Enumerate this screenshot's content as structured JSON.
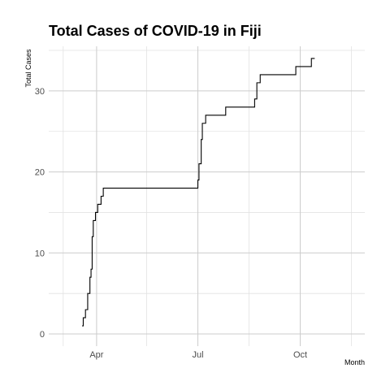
{
  "chart_data": {
    "type": "line",
    "title": "Total Cases of COVID-19 in Fiji",
    "xlabel": "Month",
    "ylabel": "Total Cases",
    "grid": true,
    "legend": "none",
    "line_style": "step",
    "line_color": "#000000",
    "xlim": [
      "2020-02-18",
      "2020-11-28"
    ],
    "ylim": [
      -1.5,
      35.5
    ],
    "x_ticks": [
      {
        "date": "2020-04-01",
        "label": "Apr"
      },
      {
        "date": "2020-07-01",
        "label": "Jul"
      },
      {
        "date": "2020-10-01",
        "label": "Oct"
      }
    ],
    "x_minor_ticks": [
      "2020-03-02",
      "2020-05-16",
      "2020-08-16",
      "2020-11-16"
    ],
    "y_ticks": [
      0,
      10,
      20,
      30
    ],
    "y_minor_ticks": [
      5,
      15,
      25,
      35
    ],
    "series": [
      {
        "x": [
          "2020-03-19",
          "2020-03-20",
          "2020-03-22",
          "2020-03-24",
          "2020-03-25",
          "2020-03-26",
          "2020-03-27",
          "2020-03-28",
          "2020-03-29",
          "2020-03-31",
          "2020-04-02",
          "2020-04-05",
          "2020-04-07",
          "2020-04-10",
          "2020-06-30",
          "2020-07-01",
          "2020-07-02",
          "2020-07-03",
          "2020-07-04",
          "2020-07-05",
          "2020-07-08",
          "2020-07-25",
          "2020-07-26",
          "2020-08-10",
          "2020-08-20",
          "2020-08-21",
          "2020-08-23",
          "2020-08-24",
          "2020-08-26",
          "2020-09-26",
          "2020-09-27",
          "2020-10-11",
          "2020-10-14"
        ],
        "values": [
          1,
          2,
          3,
          5,
          5,
          7,
          8,
          12,
          14,
          15,
          16,
          17,
          18,
          18,
          18,
          19,
          21,
          21,
          24,
          26,
          27,
          27,
          28,
          28,
          28,
          29,
          31,
          31,
          32,
          32,
          33,
          34,
          34
        ]
      }
    ]
  }
}
